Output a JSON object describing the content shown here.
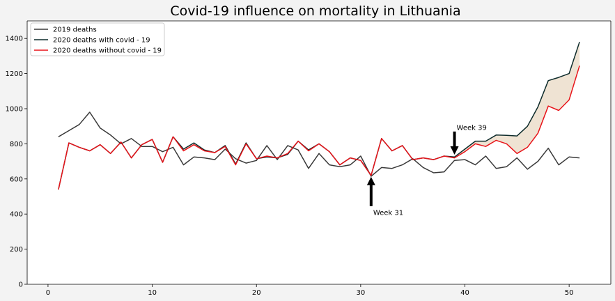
{
  "chart_data": {
    "type": "line",
    "title": "Covid-19 influence on mortality in Lithuania",
    "xlabel": "",
    "ylabel": "",
    "xlim": [
      -2,
      54
    ],
    "ylim": [
      0,
      1500
    ],
    "xticks": [
      0,
      10,
      20,
      30,
      40,
      50
    ],
    "yticks": [
      0,
      200,
      400,
      600,
      800,
      1000,
      1200,
      1400
    ],
    "grid": false,
    "legend_position": "top-left",
    "x": [
      1,
      2,
      3,
      4,
      5,
      6,
      7,
      8,
      9,
      10,
      11,
      12,
      13,
      14,
      15,
      16,
      17,
      18,
      19,
      20,
      21,
      22,
      23,
      24,
      25,
      26,
      27,
      28,
      29,
      30,
      31,
      32,
      33,
      34,
      35,
      36,
      37,
      38,
      39,
      40,
      41,
      42,
      43,
      44,
      45,
      46,
      47,
      48,
      49,
      50,
      51
    ],
    "series": [
      {
        "name": "2019 deaths",
        "color": "#3a3a3a",
        "values": [
          840,
          875,
          910,
          980,
          890,
          850,
          800,
          830,
          785,
          785,
          755,
          780,
          680,
          725,
          720,
          710,
          770,
          715,
          690,
          705,
          790,
          710,
          790,
          765,
          660,
          745,
          680,
          670,
          680,
          730,
          615,
          665,
          660,
          680,
          715,
          665,
          635,
          640,
          705,
          710,
          680,
          730,
          660,
          670,
          720,
          655,
          700,
          775,
          680,
          725,
          720
        ]
      },
      {
        "name": "2020 deaths with covid - 19",
        "color": "#0d2b2b",
        "values": [
          540,
          805,
          780,
          760,
          795,
          745,
          810,
          720,
          795,
          825,
          695,
          840,
          770,
          805,
          765,
          750,
          790,
          685,
          805,
          715,
          725,
          720,
          740,
          815,
          765,
          800,
          755,
          680,
          720,
          705,
          620,
          830,
          760,
          790,
          710,
          720,
          710,
          730,
          725,
          770,
          815,
          815,
          850,
          848,
          845,
          900,
          1010,
          1160,
          1178,
          1200,
          1380
        ]
      },
      {
        "name": "2020 deaths without covid - 19",
        "color": "#e8141a",
        "values": [
          540,
          805,
          780,
          760,
          795,
          745,
          810,
          720,
          795,
          825,
          695,
          840,
          760,
          795,
          760,
          750,
          785,
          680,
          800,
          715,
          730,
          720,
          745,
          815,
          760,
          800,
          755,
          680,
          720,
          705,
          620,
          830,
          760,
          790,
          710,
          720,
          710,
          730,
          720,
          755,
          800,
          785,
          820,
          800,
          745,
          780,
          860,
          1015,
          990,
          1050,
          1245
        ]
      }
    ],
    "fill_between": {
      "from_series": 2,
      "to_series": 1,
      "color": "#efe3d3"
    },
    "annotations": [
      {
        "text": "Week 39",
        "x": 39,
        "y": 730
      },
      {
        "text": "Week 31",
        "x": 31,
        "y": 620
      }
    ]
  }
}
